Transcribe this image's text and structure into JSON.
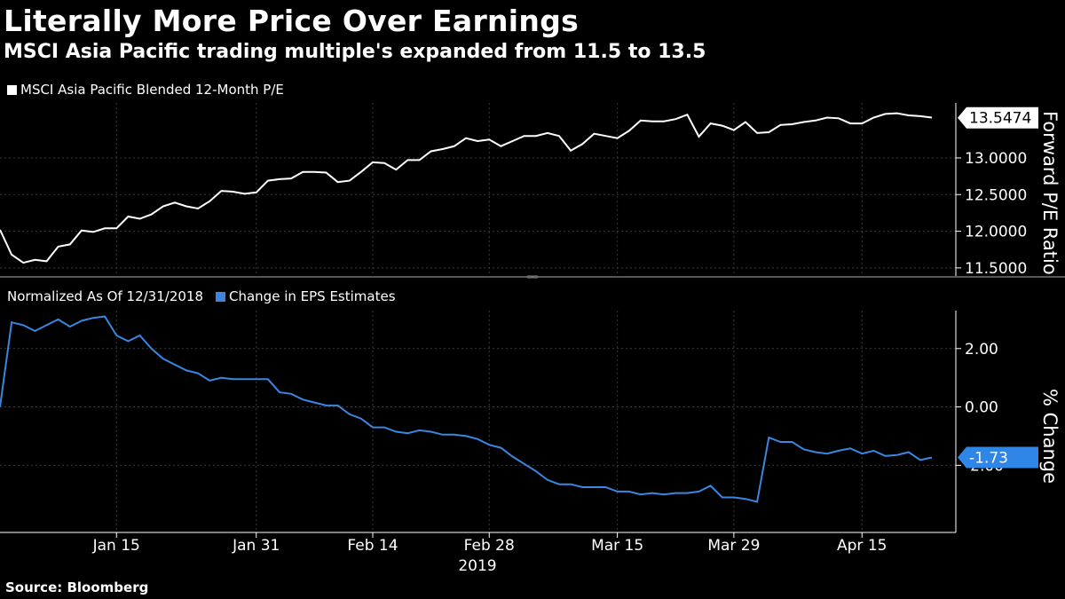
{
  "header": {
    "title": "Literally More Price Over Earnings",
    "subtitle": "MSCI Asia Pacific trading multiple's expanded from 11.5 to 13.5"
  },
  "footer": {
    "source": "Source: Bloomberg"
  },
  "colors": {
    "pe_line": "#ffffff",
    "eps_line": "#3a86e0",
    "callout_eps_bg": "#2f86e6",
    "divider": "#555555"
  },
  "chart_data": [
    {
      "type": "line",
      "legend": "MSCI Asia Pacific Blended 12-Month P/E",
      "ylabel": "Forward P/E Ratio",
      "ylim": [
        11.45,
        13.75
      ],
      "y_ticks": [
        "11.5000",
        "12.0000",
        "12.5000",
        "13.0000"
      ],
      "y_tick_values": [
        11.5,
        12.0,
        12.5,
        13.0
      ],
      "last_value_label": "13.5474",
      "last_value": 13.5474,
      "values": [
        12.02,
        11.68,
        11.57,
        11.61,
        11.59,
        11.79,
        11.82,
        12.01,
        11.99,
        12.04,
        12.04,
        12.2,
        12.17,
        12.23,
        12.34,
        12.39,
        12.34,
        12.31,
        12.41,
        12.55,
        12.54,
        12.51,
        12.53,
        12.69,
        12.71,
        12.72,
        12.81,
        12.81,
        12.8,
        12.67,
        12.69,
        12.81,
        12.94,
        12.93,
        12.84,
        12.97,
        12.97,
        13.09,
        13.12,
        13.16,
        13.27,
        13.23,
        13.25,
        13.16,
        13.23,
        13.3,
        13.3,
        13.34,
        13.3,
        13.1,
        13.19,
        13.33,
        13.3,
        13.27,
        13.37,
        13.51,
        13.5,
        13.5,
        13.53,
        13.59,
        13.29,
        13.47,
        13.44,
        13.38,
        13.49,
        13.34,
        13.35,
        13.45,
        13.46,
        13.49,
        13.51,
        13.55,
        13.54,
        13.47,
        13.47,
        13.55,
        13.6,
        13.61,
        13.58,
        13.57,
        13.55
      ]
    },
    {
      "type": "line",
      "legend": "Change in EPS Estimates",
      "legend_prefix": "Normalized As Of 12/31/2018",
      "ylabel": "% Change",
      "ylim": [
        -4.3,
        3.3
      ],
      "y_ticks": [
        "2.00",
        "0.00",
        "-2.00"
      ],
      "y_tick_values": [
        2.0,
        0.0,
        -2.0
      ],
      "last_value_label": "-1.73",
      "last_value": -1.73,
      "values": [
        0.0,
        2.9,
        2.8,
        2.6,
        2.8,
        3.0,
        2.75,
        2.95,
        3.05,
        3.1,
        2.45,
        2.25,
        2.45,
        2.0,
        1.65,
        1.45,
        1.25,
        1.15,
        0.9,
        1.0,
        0.95,
        0.95,
        0.95,
        0.95,
        0.5,
        0.45,
        0.25,
        0.15,
        0.05,
        0.05,
        -0.25,
        -0.4,
        -0.7,
        -0.7,
        -0.85,
        -0.9,
        -0.8,
        -0.85,
        -0.95,
        -0.95,
        -1.0,
        -1.1,
        -1.3,
        -1.4,
        -1.7,
        -1.95,
        -2.2,
        -2.5,
        -2.65,
        -2.65,
        -2.75,
        -2.75,
        -2.75,
        -2.9,
        -2.9,
        -3.0,
        -2.95,
        -3.0,
        -2.95,
        -2.95,
        -2.9,
        -2.7,
        -3.1,
        -3.1,
        -3.15,
        -3.25,
        -1.05,
        -1.2,
        -1.2,
        -1.45,
        -1.55,
        -1.6,
        -1.5,
        -1.42,
        -1.6,
        -1.5,
        -1.68,
        -1.65,
        -1.55,
        -1.82,
        -1.73
      ]
    }
  ],
  "x_axis": {
    "labels": [
      "Jan 15",
      "Jan 31",
      "Feb 14",
      "Feb 28",
      "Mar 15",
      "Mar 29",
      "Apr 15"
    ],
    "label_indices": [
      10,
      22,
      32,
      42,
      53,
      63,
      74
    ],
    "year": "2019"
  }
}
